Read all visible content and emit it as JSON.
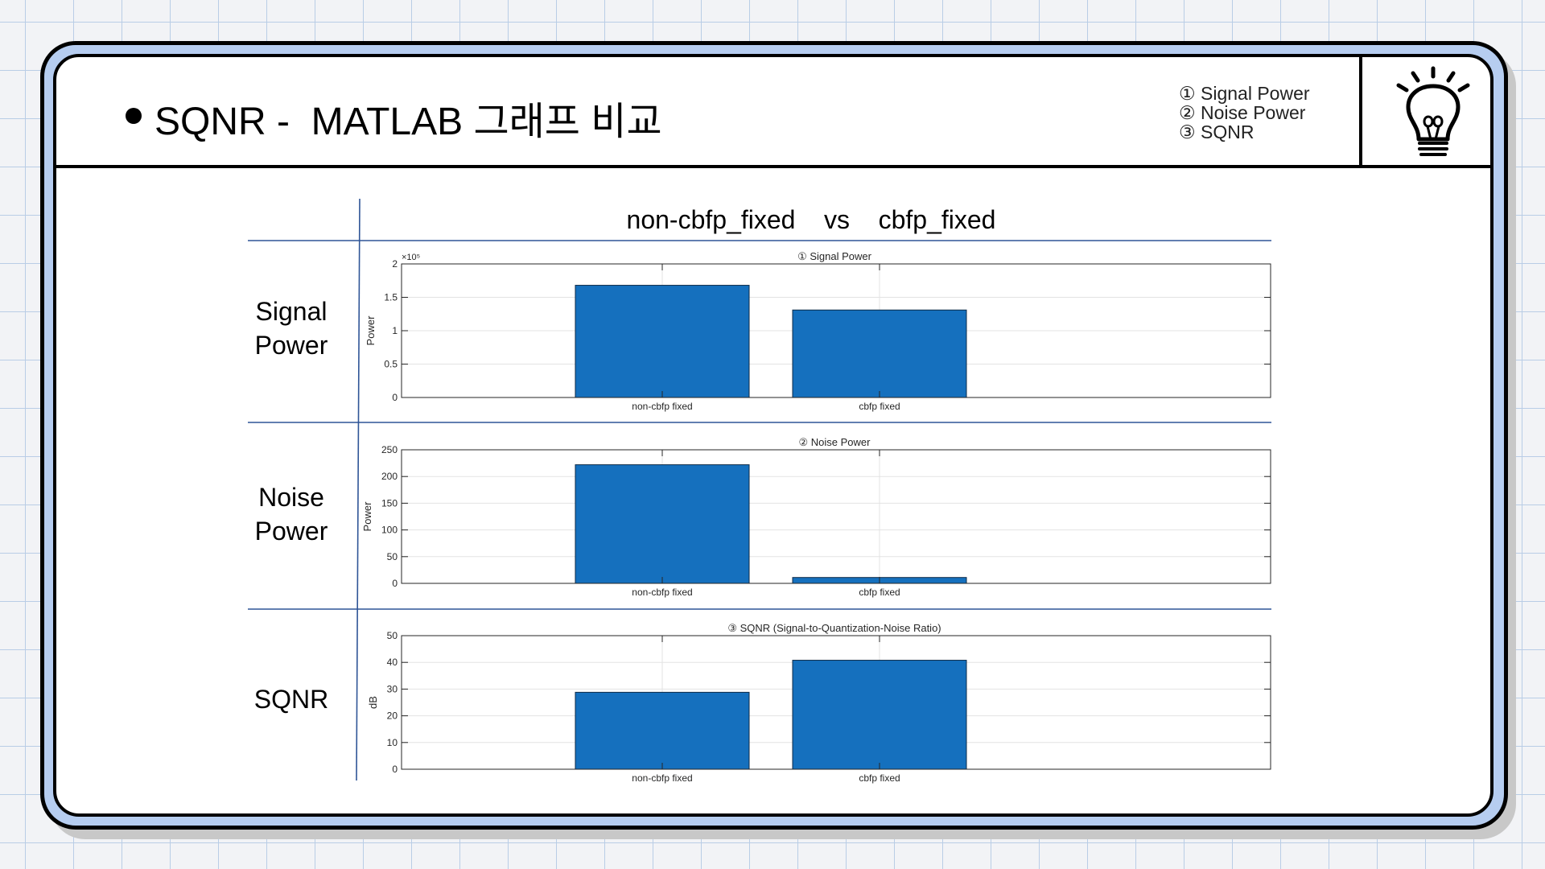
{
  "slide": {
    "title": "SQNR -  MATLAB 그래프 비교",
    "legend": [
      "① Signal Power",
      "② Noise Power",
      "③ SQNR"
    ],
    "comparison_header": "non-cbfp_fixed    vs    cbfp_fixed",
    "row_labels": [
      [
        "Signal",
        "Power"
      ],
      [
        "Noise",
        "Power"
      ],
      [
        "SQNR"
      ]
    ]
  },
  "colors": {
    "bar": "#1570be",
    "frame": "#b6cdf0",
    "divider": "#2f5597"
  },
  "icons": {
    "idea": "lightbulb-icon"
  },
  "chart_data": [
    {
      "type": "bar",
      "title": "① Signal Power",
      "categories": [
        "non-cbfp fixed",
        "cbfp fixed"
      ],
      "values": [
        168000,
        131000
      ],
      "ylabel": "Power",
      "ylim": [
        0,
        200000
      ],
      "yticks": [
        "0",
        "0.5",
        "1",
        "1.5",
        "2"
      ],
      "ytick_values": [
        0,
        50000,
        100000,
        150000,
        200000
      ],
      "exponent_label": "×10⁵",
      "grid": true
    },
    {
      "type": "bar",
      "title": "② Noise Power",
      "categories": [
        "non-cbfp fixed",
        "cbfp fixed"
      ],
      "values": [
        222,
        11
      ],
      "ylabel": "Power",
      "ylim": [
        0,
        250
      ],
      "yticks": [
        "0",
        "50",
        "100",
        "150",
        "200",
        "250"
      ],
      "ytick_values": [
        0,
        50,
        100,
        150,
        200,
        250
      ],
      "grid": true
    },
    {
      "type": "bar",
      "title": "③ SQNR (Signal-to-Quantization-Noise Ratio)",
      "categories": [
        "non-cbfp fixed",
        "cbfp fixed"
      ],
      "values": [
        28.8,
        40.8
      ],
      "ylabel": "dB",
      "ylim": [
        0,
        50
      ],
      "yticks": [
        "0",
        "10",
        "20",
        "30",
        "40",
        "50"
      ],
      "ytick_values": [
        0,
        10,
        20,
        30,
        40,
        50
      ],
      "grid": true
    }
  ]
}
